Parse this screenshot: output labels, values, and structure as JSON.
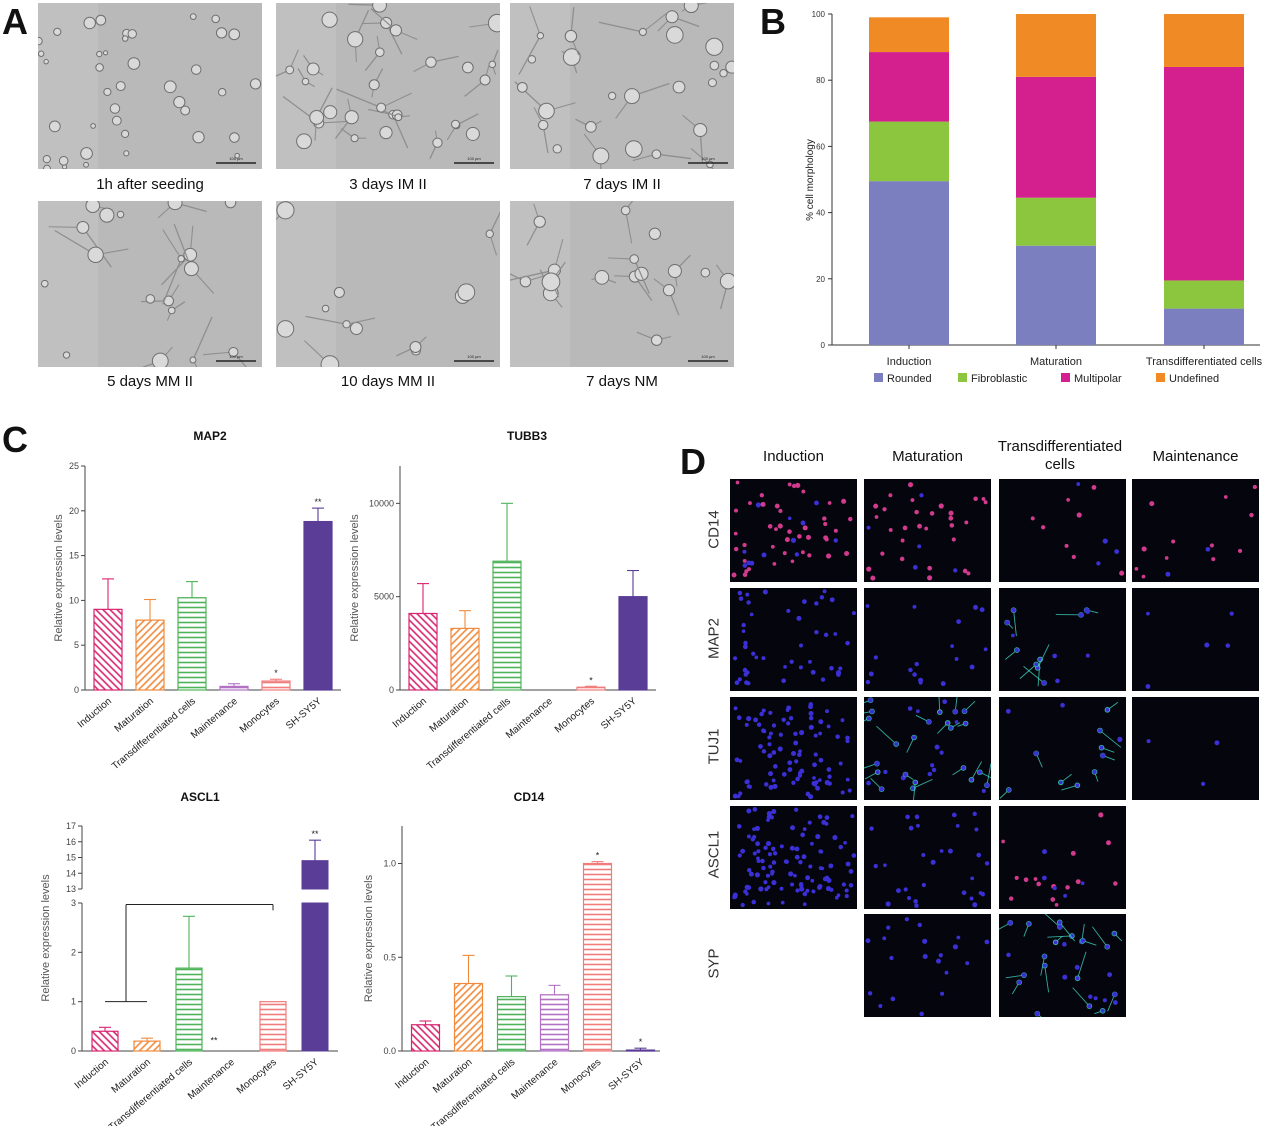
{
  "panel_labels": {
    "a": "A",
    "b": "B",
    "c": "C",
    "d": "D"
  },
  "panel_a": {
    "captions": [
      "1h after seeding",
      "3 days IM II",
      "7 days IM II",
      "5 days MM II",
      "10 days MM II",
      "7 days NM"
    ],
    "scale_bar_label": "100 µm"
  },
  "panel_d": {
    "columns": [
      "Induction",
      "Maturation",
      "Transdifferentiated cells",
      "Maintenance"
    ],
    "rows": [
      "CD14",
      "MAP2",
      "TUJ1",
      "ASCL1",
      "SYP"
    ],
    "colors": {
      "background": "#05060d",
      "nucleus": "#3b2fd6",
      "marker_magenta": "#d23a8e",
      "marker_cyan": "#3fd6c0"
    }
  },
  "chart_data": [
    {
      "id": "B",
      "type": "bar",
      "stacked": true,
      "categories": [
        "Induction",
        "Maturation",
        "Transdifferentiated cells"
      ],
      "series": [
        {
          "name": "Rounded",
          "color": "#7b7fc0",
          "values": [
            49.5,
            30,
            11
          ]
        },
        {
          "name": "Fibroblastic",
          "color": "#8cc63f",
          "values": [
            18,
            14.5,
            8.5
          ]
        },
        {
          "name": "Multipolar",
          "color": "#d4208f",
          "values": [
            21,
            36.5,
            64.5
          ]
        },
        {
          "name": "Undefined",
          "color": "#f08a24",
          "values": [
            10.5,
            19,
            16
          ]
        }
      ],
      "ylabel": "% cell morphology",
      "ylim": [
        0,
        100
      ],
      "yticks": [
        0,
        20,
        40,
        60,
        80,
        100
      ],
      "legend": "bottom"
    },
    {
      "id": "MAP2",
      "type": "bar",
      "title": "MAP2",
      "ylabel": "Relative expression levels",
      "categories": [
        "Induction",
        "Maturation",
        "Transdifferentiated cells",
        "Maintenance",
        "Monocytes",
        "SH-SY5Y"
      ],
      "values": [
        9.0,
        7.8,
        10.3,
        0.4,
        1.0,
        18.8
      ],
      "errors": [
        3.4,
        2.3,
        1.8,
        0.3,
        0.2,
        1.5
      ],
      "annotations": [
        "",
        "",
        "",
        "",
        "*",
        "**"
      ],
      "colors": [
        "#d8246f",
        "#f08a3c",
        "#4fb35a",
        "#b272c4",
        "#f17c7c",
        "#5a3d96"
      ],
      "ylim": [
        0,
        25
      ],
      "yticks": [
        0,
        5,
        10,
        15,
        20,
        25
      ]
    },
    {
      "id": "TUBB3",
      "type": "bar",
      "title": "TUBB3",
      "ylabel": "Relative expression levels",
      "categories": [
        "Induction",
        "Maturation",
        "Transdifferentiated cells",
        "Maintenance",
        "Monocytes",
        "SH-SY5Y"
      ],
      "values": [
        4100,
        3300,
        6900,
        0,
        150,
        5000
      ],
      "errors": [
        1600,
        950,
        3100,
        0,
        50,
        1400
      ],
      "annotations": [
        "",
        "",
        "",
        "",
        "*",
        ""
      ],
      "colors": [
        "#d8246f",
        "#f08a3c",
        "#4fb35a",
        "#b272c4",
        "#f17c7c",
        "#5a3d96"
      ],
      "ylim": [
        0,
        12000
      ],
      "yticks": [
        0,
        5000,
        10000
      ]
    },
    {
      "id": "ASCL1",
      "type": "bar",
      "title": "ASCL1",
      "ylabel": "Relative expression levels",
      "categories": [
        "Induction",
        "Maturation",
        "Transdifferentiated cells",
        "Maintenance",
        "Monocytes",
        "SH-SY5Y"
      ],
      "values": [
        0.4,
        0.2,
        1.68,
        0,
        1.0,
        14.8
      ],
      "errors": [
        0.08,
        0.06,
        1.05,
        0,
        0,
        1.3
      ],
      "annotations": [
        "",
        "",
        "",
        "",
        "",
        "**"
      ],
      "bracket_label": "**",
      "colors": [
        "#d8246f",
        "#f08a3c",
        "#4fb35a",
        "#b272c4",
        "#f17c7c",
        "#5a3d96"
      ],
      "axis_break": {
        "lower": [
          0,
          3
        ],
        "upper": [
          13,
          17
        ]
      },
      "yticks_lower": [
        0,
        1,
        2,
        3
      ],
      "yticks_upper": [
        13,
        14,
        15,
        16,
        17
      ]
    },
    {
      "id": "CD14",
      "type": "bar",
      "title": "CD14",
      "ylabel": "Relative expression levels",
      "categories": [
        "Induction",
        "Maturation",
        "Transdifferentiated cells",
        "Maintenance",
        "Monocytes",
        "SH-SY5Y"
      ],
      "values": [
        0.14,
        0.36,
        0.29,
        0.3,
        1.0,
        0.005
      ],
      "errors": [
        0.02,
        0.15,
        0.11,
        0.05,
        0.01,
        0.01
      ],
      "annotations": [
        "",
        "",
        "",
        "",
        "*",
        "*"
      ],
      "colors": [
        "#d8246f",
        "#f08a3c",
        "#4fb35a",
        "#b272c4",
        "#f17c7c",
        "#5a3d96"
      ],
      "ylim": [
        0,
        1.2
      ],
      "yticks": [
        0.0,
        0.5,
        1.0
      ]
    }
  ]
}
